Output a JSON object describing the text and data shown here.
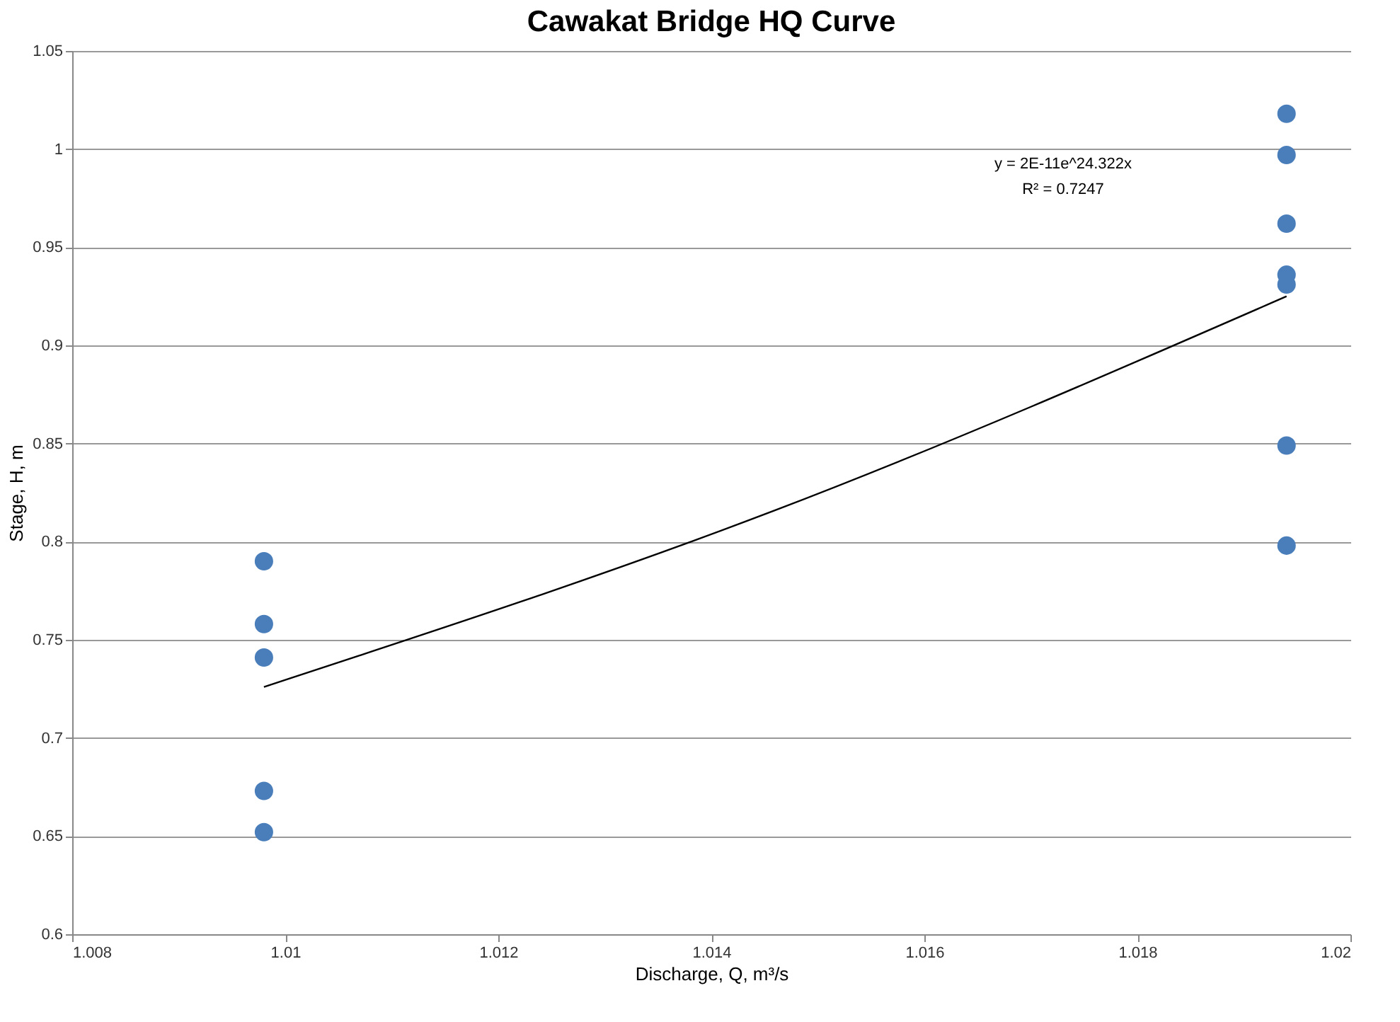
{
  "chart_data": {
    "type": "scatter",
    "title": "Cawakat Bridge HQ Curve",
    "xlabel": "Discharge, Q, m³/s",
    "ylabel": "Stage, H, m",
    "xlim": [
      1.008,
      1.02
    ],
    "xticks": [
      1.008,
      1.01,
      1.012,
      1.014,
      1.016,
      1.018,
      1.02
    ],
    "ylim": [
      0.6,
      1.05
    ],
    "yticks": [
      0.6,
      0.65,
      0.7,
      0.75,
      0.8,
      0.85,
      0.9,
      0.95,
      1,
      1.05
    ],
    "grid": "y",
    "series": [
      {
        "type": "scatter",
        "marker": "circle",
        "color": "#4a7ebb",
        "x": [
          1.0098,
          1.0098,
          1.0098,
          1.0098,
          1.0098,
          1.0194,
          1.0194,
          1.0194,
          1.0194,
          1.0194,
          1.0194,
          1.0194
        ],
        "values": [
          0.79,
          0.758,
          0.741,
          0.673,
          0.652,
          1.018,
          0.997,
          0.962,
          0.936,
          0.931,
          0.849,
          0.798
        ]
      },
      {
        "type": "line",
        "marker": "none",
        "color": "#000000",
        "x": [
          1.0098,
          1.0146,
          1.0194
        ],
        "values": [
          0.726,
          0.816,
          0.925
        ]
      }
    ],
    "annotations": [
      "y = 2E-11e^24.322x",
      "R² = 0.7247"
    ]
  }
}
